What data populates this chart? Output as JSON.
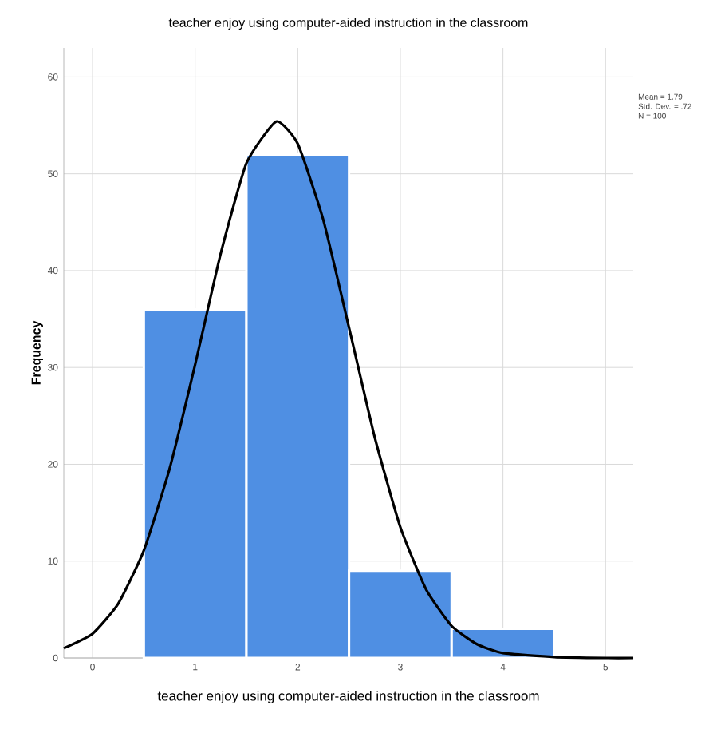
{
  "chart_data": {
    "type": "histogram",
    "title": "teacher enjoy using computer-aided instruction in the classroom",
    "xlabel": "teacher enjoy using computer-aided instruction in the classroom",
    "ylabel": "Frequency",
    "bins": [
      0.5,
      1.5,
      2.5,
      3.5,
      4.5
    ],
    "values": [
      36,
      52,
      9,
      3
    ],
    "color": "#4f8fe3",
    "series": [
      {
        "type": "line",
        "color": "#000000",
        "x": [
          -0.28,
          0,
          0.25,
          0.5,
          0.75,
          1,
          1.25,
          1.5,
          1.79,
          2,
          2.25,
          2.5,
          2.75,
          3,
          3.25,
          3.5,
          3.75,
          4,
          4.5,
          5,
          5.27
        ],
        "values": [
          1,
          2.5,
          5.6,
          11.1,
          19.5,
          30.3,
          41.8,
          51.1,
          55.4,
          53.1,
          45.2,
          34.1,
          22.8,
          13.5,
          7.1,
          3.3,
          1.4,
          0.5,
          0.1,
          0,
          0
        ]
      }
    ],
    "xlim": [
      -0.28,
      5.27
    ],
    "ylim": [
      0,
      63
    ],
    "xticks": [
      0,
      1,
      2,
      3,
      4,
      5
    ],
    "yticks": [
      0,
      10,
      20,
      30,
      40,
      50,
      60
    ],
    "grid": true,
    "annotations": [
      "Mean = 1.79",
      "Std. Dev. = .72",
      "N = 100"
    ]
  }
}
